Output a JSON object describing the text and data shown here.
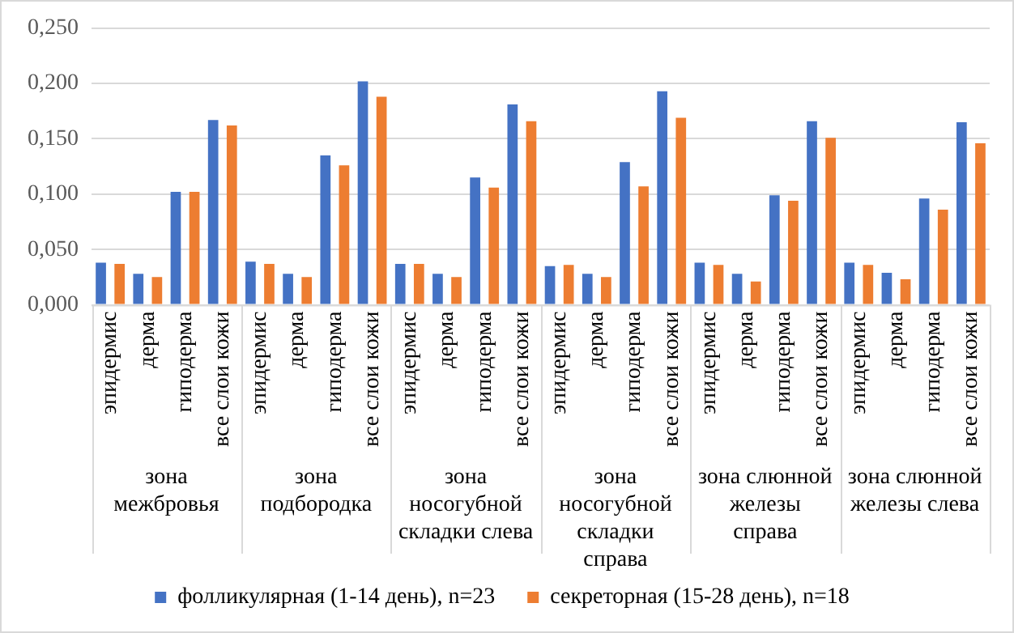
{
  "chart_data": {
    "type": "bar",
    "categories": [
      "эпидермис",
      "дерма",
      "гиподерма",
      "все слои кожи",
      "эпидермис",
      "дерма",
      "гиподерма",
      "все слои кожи",
      "эпидермис",
      "дерма",
      "гиподерма",
      "все слои кожи",
      "эпидермис",
      "дерма",
      "гиподерма",
      "все слои кожи",
      "эпидермис",
      "дерма",
      "гиподерма",
      "все слои кожи",
      "эпидермис",
      "дерма",
      "гиподерма",
      "все слои кожи"
    ],
    "series": [
      {
        "name": "фолликулярная (1-14 день), n=23",
        "color": "#4472c4",
        "values": [
          0.038,
          0.028,
          0.102,
          0.167,
          0.039,
          0.028,
          0.135,
          0.202,
          0.037,
          0.028,
          0.115,
          0.181,
          0.035,
          0.028,
          0.129,
          0.193,
          0.038,
          0.028,
          0.099,
          0.166,
          0.038,
          0.029,
          0.096,
          0.165
        ]
      },
      {
        "name": "секреторная (15-28 день), n=18",
        "color": "#ed7d31",
        "values": [
          0.037,
          0.025,
          0.102,
          0.162,
          0.037,
          0.025,
          0.126,
          0.188,
          0.037,
          0.025,
          0.106,
          0.166,
          0.036,
          0.025,
          0.107,
          0.169,
          0.036,
          0.021,
          0.094,
          0.151,
          0.036,
          0.023,
          0.086,
          0.146
        ]
      }
    ],
    "annotations": [
      "зона межбровья",
      "зона подбородка",
      "зона носогубной складки слева",
      "зона носогубной складки справа",
      "зона слюнной железы справа",
      "зона слюнной железы слева"
    ],
    "ylim": [
      0,
      0.25
    ],
    "yticks": [
      {
        "value": 0,
        "label": "0,000"
      },
      {
        "value": 0.05,
        "label": "0,050"
      },
      {
        "value": 0.1,
        "label": "0,100"
      },
      {
        "value": 0.15,
        "label": "0,150"
      },
      {
        "value": 0.2,
        "label": "0,200"
      },
      {
        "value": 0.25,
        "label": "0,250"
      }
    ],
    "grid": "y",
    "legend": "bottom"
  }
}
